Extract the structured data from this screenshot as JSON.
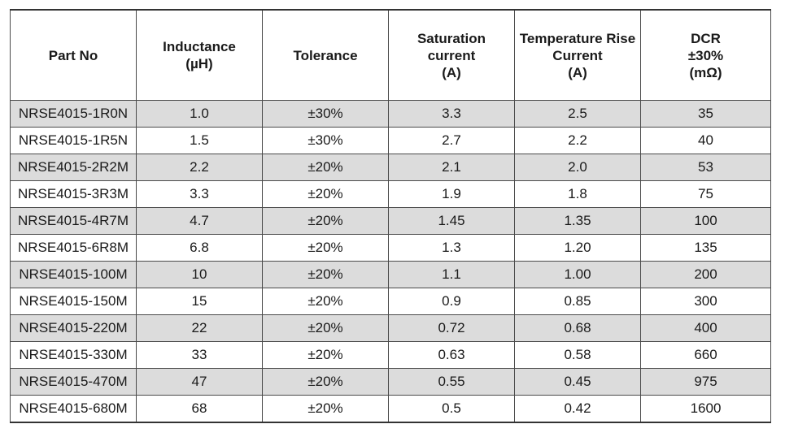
{
  "table": {
    "headers": [
      "Part No",
      "Inductance\n(µH)",
      "Tolerance",
      "Saturation\ncurrent\n(A)",
      "Temperature Rise\nCurrent\n(A)",
      "DCR\n±30%\n(mΩ)"
    ],
    "rows": [
      [
        "NRSE4015-1R0N",
        "1.0",
        "±30%",
        "3.3",
        "2.5",
        "35"
      ],
      [
        "NRSE4015-1R5N",
        "1.5",
        "±30%",
        "2.7",
        "2.2",
        "40"
      ],
      [
        "NRSE4015-2R2M",
        "2.2",
        "±20%",
        "2.1",
        "2.0",
        "53"
      ],
      [
        "NRSE4015-3R3M",
        "3.3",
        "±20%",
        "1.9",
        "1.8",
        "75"
      ],
      [
        "NRSE4015-4R7M",
        "4.7",
        "±20%",
        "1.45",
        "1.35",
        "100"
      ],
      [
        "NRSE4015-6R8M",
        "6.8",
        "±20%",
        "1.3",
        "1.20",
        "135"
      ],
      [
        "NRSE4015-100M",
        "10",
        "±20%",
        "1.1",
        "1.00",
        "200"
      ],
      [
        "NRSE4015-150M",
        "15",
        "±20%",
        "0.9",
        "0.85",
        "300"
      ],
      [
        "NRSE4015-220M",
        "22",
        "±20%",
        "0.72",
        "0.68",
        "400"
      ],
      [
        "NRSE4015-330M",
        "33",
        "±20%",
        "0.63",
        "0.58",
        "660"
      ],
      [
        "NRSE4015-470M",
        "47",
        "±20%",
        "0.55",
        "0.45",
        "975"
      ],
      [
        "NRSE4015-680M",
        "68",
        "±20%",
        "0.5",
        "0.42",
        "1600"
      ]
    ],
    "shade_color": "#dcdcdc",
    "border_color": "#4a4a4a"
  }
}
